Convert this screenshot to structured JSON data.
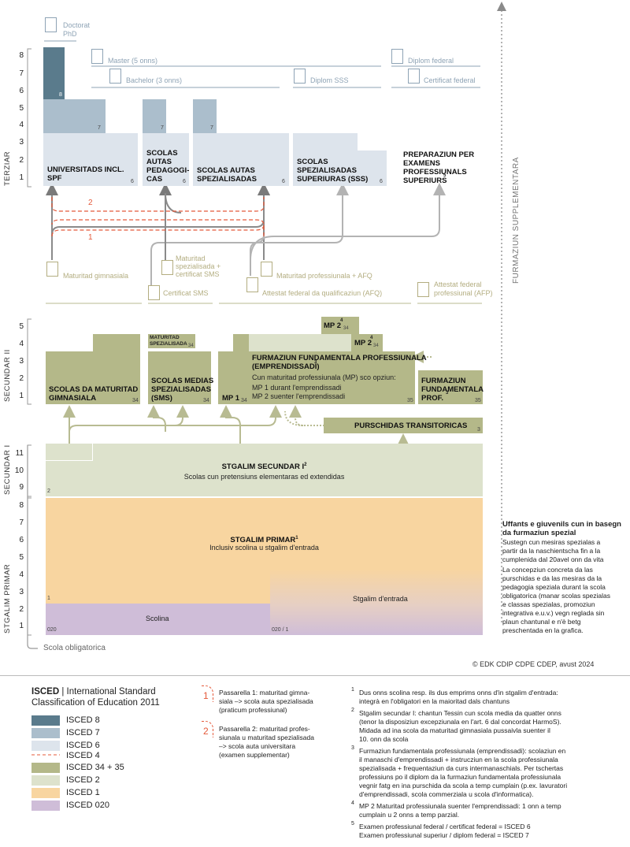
{
  "colors": {
    "isced8": "#5a7b8c",
    "isced7": "#abbecc",
    "isced6": "#dde4ec",
    "isced4": "#e4593a",
    "isced34": "#b4b889",
    "isced2": "#dde2cc",
    "isced1": "#f8d5a0",
    "isced020": "#cfbdd8",
    "arrow_grey": "#b3b3b3",
    "arrow_olive": "#b8bb92",
    "cert_grey": "#8ea3b5",
    "cert_olive": "#b3ad80"
  },
  "axis_labels": {
    "terziar": "TERZIAR",
    "secundar2": "SECUNDAR II",
    "secundar1": "SECUNDAR I",
    "stgalim_primar": "STGALIM PRIMAR",
    "furmaziun_supplementara": "FURMAZIUN SUPPLEMENTARA",
    "scola_obligatorica": "Scola obligatorica"
  },
  "y_ticks": {
    "terziar": [
      "8",
      "7",
      "6",
      "5",
      "4",
      "3",
      "2",
      "1"
    ],
    "secundar2": [
      "5",
      "4",
      "3",
      "2",
      "1"
    ],
    "secundar1": [
      "11",
      "10",
      "9"
    ],
    "primar": [
      "8",
      "7",
      "6",
      "5",
      "4",
      "3",
      "2",
      "1"
    ]
  },
  "certificates": {
    "doctorat": "Doctorat",
    "phd": "PhD",
    "master": "Master (5 onns)",
    "bachelor": "Bachelor (3 onns)",
    "diplom_sss": "Diplom SSS",
    "diplom_federal": "Diplom federal",
    "certificat_federal": "Certificat federal",
    "maturitad_gimnasiala": "Maturitad gimnasiala",
    "maturitad_spez_1": "Maturitad",
    "maturitad_spez_2": "spezialisada +",
    "maturitad_spez_3": "certificat SMS",
    "certificat_sms": "Certificat SMS",
    "maturitad_prof": "Maturitad professiunala + AFQ",
    "attestat_afq": "Attestat federal da qualificaziun (AFQ)",
    "attestat_afp_1": "Attestat federal",
    "attestat_afp_2": "professiunal (AFP)"
  },
  "tertiary": {
    "universitads": "UNIVERSITADS INCL. SPF",
    "scolas_pedagogicas": [
      "SCOLAS",
      "AUTAS",
      "PEDAGOGI-",
      "CAS"
    ],
    "scolas_autas_spez": [
      "SCOLAS AUTAS",
      "SPEZIALISADAS"
    ],
    "scolas_sss": [
      "SCOLAS",
      "SPEZIALISADAS",
      "SUPERIURAS (SSS)"
    ],
    "preparaziun": [
      "PREPARAZIUN PER",
      "EXAMENS",
      "PROFESSIUNALS",
      "SUPERIURS"
    ],
    "preparaziun_note": "5",
    "levels": {
      "l8": "8",
      "l7": "7",
      "l6": "6"
    }
  },
  "passarellas": {
    "p1": "1",
    "p2": "2"
  },
  "secondary2": {
    "scolas_maturitad": [
      "SCOLAS DA MATURITAD",
      "GIMNASIALA"
    ],
    "maturitad_spez_small": [
      "MATURITAD",
      "SPEZIALISADA"
    ],
    "scolas_medias": [
      "SCOLAS MEDIAS",
      "SPEZIALISADAS",
      "(SMS)"
    ],
    "mp1": "MP 1",
    "mp2": "MP 2",
    "mp2_note": "4",
    "furmaziun_fund": [
      "FURMAZIUN FUNDAMENTALA PROFESSIUNALA",
      "(EMPRENDISSADI)"
    ],
    "furmaziun_fund_note": "3",
    "mp_intro": "Cun maturitad professiunala (MP) sco opziun:",
    "mp1_line": "MP 1 durant l'emprendissadi",
    "mp2_line": "MP 2 suenter l'emprendissadi",
    "furmaziun_prof": [
      "FURMAZIUN",
      "FUNDAMENTALA",
      "PROF."
    ],
    "purschidas": "PURSCHIDAS TRANSITORICAS",
    "levels": {
      "l34": "34",
      "l35": "35",
      "l3": "3"
    }
  },
  "secondary1": {
    "title": "STGALIM SECUNDAR I",
    "note": "2",
    "subtitle": "Scolas cun pretensiuns elementaras ed extendidas",
    "level": "2"
  },
  "primary": {
    "title": "STGALIM PRIMAR",
    "note": "1",
    "subtitle": "Inclusiv scolina u stgalim d'entrada",
    "level1": "1",
    "scolina": "Scolina",
    "stgalim_entrada": "Stgalim d'entrada",
    "level020": "020",
    "level020_1": "020 / 1"
  },
  "special_ed": {
    "title": [
      "Uffants e giuvenils cun in basegn",
      "da furmaziun spezial"
    ],
    "p1": [
      "Sustegn cun mesiras spezialas a",
      "partir da la naschientscha fin a la",
      "cumplenida dal 20avel onn da vita"
    ],
    "p2": [
      "La concepziun concreta da las",
      "purschidas e da las mesiras da la",
      "pedagogia speziala durant la scola",
      "obligatorica (manar scolas spezialas",
      "e classas spezialas, promoziun",
      "integrativa e.u.v.) vegn reglada sin",
      "plaun chantunal e n'è betg",
      "preschentada en la grafica."
    ]
  },
  "copyright": "© EDK CDIP CDPE CDEP, avust 2024",
  "legend": {
    "isced_bold": "ISCED",
    "isced_rest": " | International Standard",
    "isced_line2": "Classification of Education 2011",
    "items": [
      {
        "label": "ISCED 8"
      },
      {
        "label": "ISCED 7"
      },
      {
        "label": "ISCED 6"
      },
      {
        "label": "ISCED 4"
      },
      {
        "label": "ISCED 34 + 35"
      },
      {
        "label": "ISCED 2"
      },
      {
        "label": "ISCED 1"
      },
      {
        "label": "ISCED 020"
      }
    ],
    "passarella1": [
      "Passarella 1: maturitad gimna-",
      "siala  –> scola auta spezialisada",
      "(praticum professiunal)"
    ],
    "passarella2": [
      "Passarella 2: maturitad profes-",
      "siunala  u maturitad spezialisada",
      "–> scola auta universitara",
      "(examen supplementar)"
    ]
  },
  "footnotes": [
    {
      "num": "1",
      "lines": [
        "Dus onns scolina resp. ils dus emprims onns d'in stgalim d'entrada:",
        "integrà en l'obligatori en la maioritad dals chantuns"
      ]
    },
    {
      "num": "2",
      "lines": [
        "Stgalim secundar I: chantun Tessin cun scola media da quatter onns",
        "(tenor la disposiziun excepziunala en l'art. 6 dal concordat HarmoS).",
        " Midada ad ina scola da maturitad gimnasiala pussaivla suenter il",
        "10. onn da scola"
      ]
    },
    {
      "num": "3",
      "lines": [
        "Furmaziun fundamentala professiunala (emprendissadi): scolaziun en",
        "il manaschi d'emprendissadi + instrucziun en la scola professiunala",
        "spezialisada + frequentaziun da curs intermanaschials. Per tschertas",
        "professiuns po il diplom da la furmaziun fundamentala professiunala",
        "vegnir fatg en ina purschida da scola a temp cumplain (p.ex. lavuratori",
        "d'emprendissadi, scola commerziala u scola d'informatica)."
      ]
    },
    {
      "num": "4",
      "lines": [
        "MP 2 Maturitad professiunala suenter l'emprendissadi: 1 onn a temp",
        "cumplain u 2 onns a temp parzial."
      ]
    },
    {
      "num": "5",
      "lines": [
        "Examen professiunal federal / certificat federal = ISCED 6",
        "Examen professiunal superiur / diplom federal = ISCED 7"
      ]
    }
  ]
}
